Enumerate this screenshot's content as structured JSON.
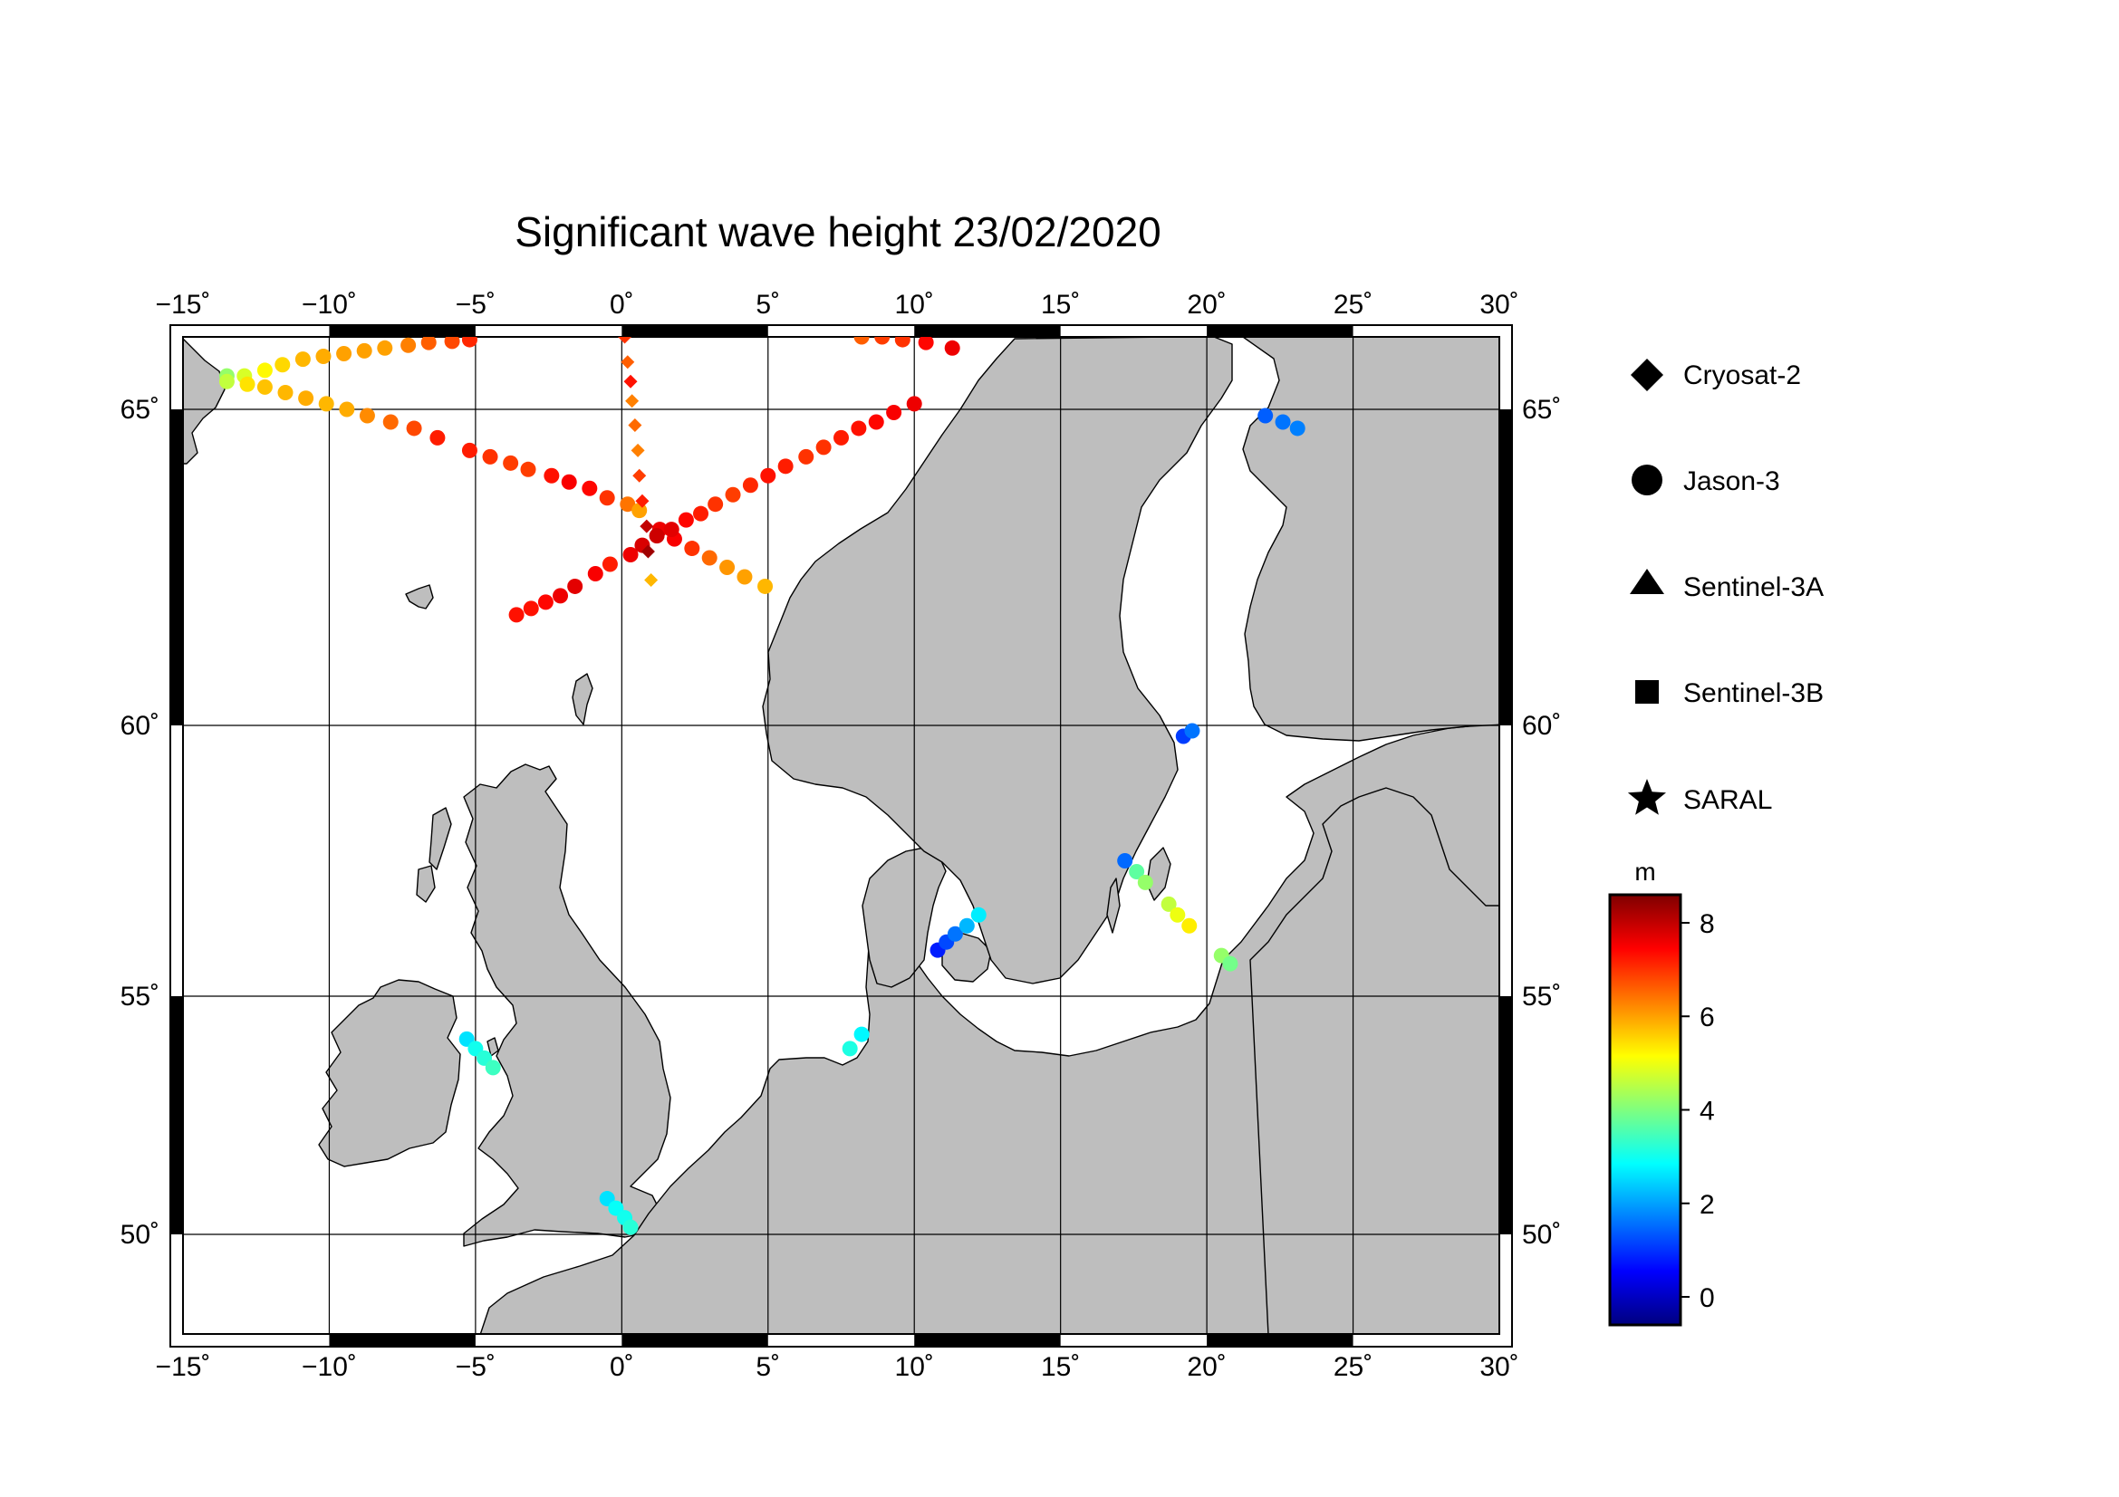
{
  "title": "Significant wave height 23/02/2020",
  "map": {
    "lon_range": [
      -15,
      30
    ],
    "lat_range": [
      48.3,
      66.3
    ],
    "lon_ticks": [
      -15,
      -10,
      -5,
      0,
      5,
      10,
      15,
      20,
      25,
      30
    ],
    "lon_tick_labels": [
      "−15˚",
      "−10˚",
      "−5˚",
      "0˚",
      "5˚",
      "10˚",
      "15˚",
      "20˚",
      "25˚",
      "30˚"
    ],
    "lat_ticks": [
      50,
      55,
      60,
      65
    ],
    "lat_tick_labels": [
      "50˚",
      "55˚",
      "60˚",
      "65˚"
    ],
    "grid": true,
    "land_color": "#bebebe",
    "sea_color": "#ffffff"
  },
  "legend": {
    "items": [
      {
        "label": "Cryosat-2",
        "symbol": "diamond"
      },
      {
        "label": "Jason-3",
        "symbol": "circle"
      },
      {
        "label": "Sentinel-3A",
        "symbol": "triangle"
      },
      {
        "label": "Sentinel-3B",
        "symbol": "square"
      },
      {
        "label": "SARAL",
        "symbol": "star"
      }
    ]
  },
  "colorbar": {
    "unit": "m",
    "range": [
      -0.6,
      8.6
    ],
    "ticks": [
      0,
      2,
      4,
      6,
      8
    ],
    "tick_labels": [
      "0",
      "2",
      "4",
      "6",
      "8"
    ]
  },
  "chart_data": {
    "type": "scatter",
    "title": "Significant wave height 23/02/2020",
    "colorbar_label": "m",
    "series": [
      {
        "name": "Jason-3",
        "symbol": "circle",
        "points": [
          [
            -13.5,
            65.6,
            4.2
          ],
          [
            -12.9,
            65.6,
            4.8
          ],
          [
            -12.2,
            65.7,
            5.2
          ],
          [
            -11.6,
            65.8,
            5.5
          ],
          [
            -10.9,
            65.9,
            5.8
          ],
          [
            -10.2,
            65.95,
            5.9
          ],
          [
            -9.5,
            66.0,
            6.0
          ],
          [
            -8.8,
            66.05,
            6.0
          ],
          [
            -8.1,
            66.1,
            6.0
          ],
          [
            -7.3,
            66.15,
            6.3
          ],
          [
            -6.6,
            66.2,
            6.6
          ],
          [
            -5.8,
            66.22,
            6.8
          ],
          [
            -5.2,
            66.25,
            7.1
          ],
          [
            -13.5,
            65.5,
            4.6
          ],
          [
            -12.8,
            65.45,
            5.4
          ],
          [
            -12.2,
            65.4,
            5.7
          ],
          [
            -11.5,
            65.3,
            5.8
          ],
          [
            -10.8,
            65.2,
            5.9
          ],
          [
            -10.1,
            65.1,
            5.8
          ],
          [
            -9.4,
            65.0,
            5.9
          ],
          [
            -8.7,
            64.9,
            6.2
          ],
          [
            -7.9,
            64.8,
            6.5
          ],
          [
            -7.1,
            64.7,
            6.8
          ],
          [
            -6.3,
            64.55,
            7.2
          ],
          [
            -5.2,
            64.35,
            7.2
          ],
          [
            -4.5,
            64.25,
            7.0
          ],
          [
            -3.8,
            64.15,
            6.9
          ],
          [
            -3.2,
            64.05,
            6.9
          ],
          [
            -2.4,
            63.95,
            7.3
          ],
          [
            -1.8,
            63.85,
            7.5
          ],
          [
            -1.1,
            63.75,
            7.4
          ],
          [
            -0.5,
            63.6,
            7.0
          ],
          [
            0.2,
            63.5,
            6.4
          ],
          [
            0.6,
            63.4,
            6.0
          ],
          [
            1.3,
            63.1,
            7.6
          ],
          [
            1.8,
            62.95,
            7.5
          ],
          [
            2.4,
            62.8,
            7.0
          ],
          [
            3.0,
            62.65,
            6.5
          ],
          [
            3.6,
            62.5,
            6.1
          ],
          [
            4.2,
            62.35,
            6.0
          ],
          [
            4.9,
            62.2,
            5.8
          ],
          [
            -3.6,
            61.75,
            7.3
          ],
          [
            -3.1,
            61.85,
            7.3
          ],
          [
            -2.6,
            61.95,
            7.4
          ],
          [
            -2.1,
            62.05,
            7.6
          ],
          [
            -1.6,
            62.2,
            7.7
          ],
          [
            -0.9,
            62.4,
            7.5
          ],
          [
            -0.4,
            62.55,
            7.2
          ],
          [
            0.3,
            62.7,
            7.6
          ],
          [
            0.7,
            62.85,
            7.8
          ],
          [
            1.2,
            63.0,
            7.9
          ],
          [
            1.7,
            63.1,
            7.7
          ],
          [
            2.2,
            63.25,
            7.4
          ],
          [
            2.7,
            63.35,
            7.2
          ],
          [
            3.2,
            63.5,
            7.0
          ],
          [
            3.8,
            63.65,
            6.9
          ],
          [
            4.4,
            63.8,
            7.1
          ],
          [
            5.0,
            63.95,
            7.3
          ],
          [
            5.6,
            64.1,
            7.2
          ],
          [
            6.3,
            64.25,
            7.0
          ],
          [
            6.9,
            64.4,
            7.0
          ],
          [
            7.5,
            64.55,
            7.2
          ],
          [
            8.1,
            64.7,
            7.3
          ],
          [
            8.7,
            64.8,
            7.4
          ],
          [
            9.3,
            64.95,
            7.5
          ],
          [
            10.0,
            65.1,
            7.6
          ],
          [
            8.2,
            66.3,
            6.6
          ],
          [
            8.9,
            66.3,
            6.9
          ],
          [
            9.6,
            66.25,
            7.0
          ],
          [
            10.4,
            66.2,
            7.4
          ],
          [
            11.3,
            66.1,
            7.6
          ],
          [
            22.0,
            64.9,
            1.4
          ],
          [
            22.6,
            64.8,
            1.6
          ],
          [
            23.1,
            64.7,
            1.7
          ],
          [
            19.2,
            59.8,
            1.1
          ],
          [
            19.5,
            59.9,
            1.6
          ],
          [
            17.2,
            57.5,
            1.5
          ],
          [
            17.6,
            57.3,
            3.7
          ],
          [
            17.9,
            57.1,
            4.2
          ],
          [
            18.7,
            56.7,
            4.6
          ],
          [
            19.0,
            56.5,
            5.0
          ],
          [
            19.4,
            56.3,
            5.3
          ],
          [
            20.5,
            55.75,
            4.2
          ],
          [
            20.8,
            55.6,
            3.9
          ],
          [
            10.8,
            55.85,
            0.8
          ],
          [
            11.1,
            56.0,
            1.2
          ],
          [
            11.4,
            56.15,
            1.6
          ],
          [
            11.8,
            56.3,
            2.2
          ],
          [
            12.2,
            56.5,
            2.7
          ],
          [
            7.8,
            53.9,
            3.1
          ],
          [
            8.2,
            54.2,
            2.8
          ],
          [
            -5.3,
            54.1,
            2.6
          ],
          [
            -5.0,
            53.9,
            3.0
          ],
          [
            -4.7,
            53.7,
            3.2
          ],
          [
            -4.4,
            53.5,
            3.4
          ],
          [
            -0.5,
            50.75,
            2.6
          ],
          [
            -0.2,
            50.55,
            2.9
          ],
          [
            0.1,
            50.35,
            3.0
          ],
          [
            0.3,
            50.15,
            3.2
          ]
        ]
      },
      {
        "name": "Cryosat-2",
        "symbol": "diamond",
        "points": [
          [
            0.1,
            66.3,
            7.0
          ],
          [
            0.2,
            65.85,
            6.6
          ],
          [
            0.3,
            65.5,
            7.3
          ],
          [
            0.35,
            65.15,
            6.3
          ],
          [
            0.45,
            64.75,
            6.5
          ],
          [
            0.55,
            64.35,
            6.3
          ],
          [
            0.6,
            63.95,
            6.9
          ],
          [
            0.7,
            63.55,
            7.2
          ],
          [
            0.85,
            63.15,
            8.0
          ],
          [
            0.9,
            62.75,
            8.3
          ],
          [
            1.0,
            62.3,
            5.8
          ]
        ]
      },
      {
        "name": "Sentinel-3A",
        "symbol": "triangle",
        "points": []
      },
      {
        "name": "Sentinel-3B",
        "symbol": "square",
        "points": []
      },
      {
        "name": "SARAL",
        "symbol": "star",
        "points": []
      }
    ]
  }
}
